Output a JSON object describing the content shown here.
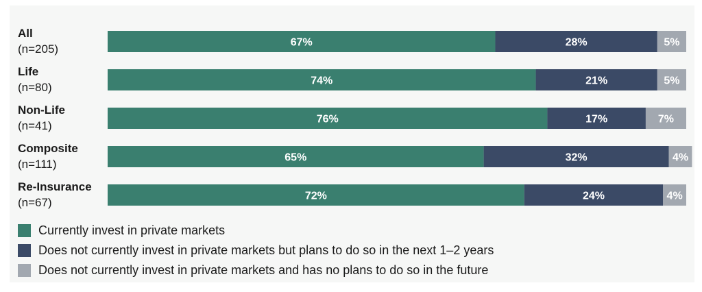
{
  "chart_data": {
    "type": "bar",
    "orientation": "horizontal",
    "stacked": true,
    "categories": [
      "All",
      "Life",
      "Non-Life",
      "Composite",
      "Re-Insurance"
    ],
    "category_counts": [
      "(n=205)",
      "(n=80)",
      "(n=41)",
      "(n=111)",
      "(n=67)"
    ],
    "series": [
      {
        "name": "Currently invest in private markets",
        "values": [
          67,
          74,
          76,
          65,
          72
        ],
        "color": "#3a7f6f"
      },
      {
        "name": "Does not currently invest in private markets but plans to do so in the next 1–2 years",
        "values": [
          28,
          21,
          17,
          32,
          24
        ],
        "color": "#3b4a66"
      },
      {
        "name": "Does not currently invest in private markets and has no plans to do so in the future",
        "values": [
          5,
          5,
          7,
          4,
          4
        ],
        "color": "#a2a8b0"
      }
    ],
    "value_labels": [
      [
        "67%",
        "28%",
        "5%"
      ],
      [
        "74%",
        "21%",
        "5%"
      ],
      [
        "76%",
        "17%",
        "7%"
      ],
      [
        "65%",
        "32%",
        "4%"
      ],
      [
        "72%",
        "24%",
        "4%"
      ]
    ],
    "xlim": [
      0,
      100
    ],
    "grid": false,
    "legend_position": "bottom-left"
  }
}
